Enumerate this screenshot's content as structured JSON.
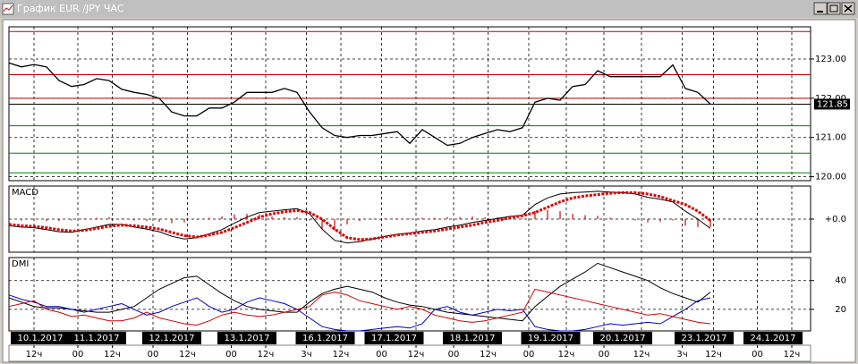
{
  "window": {
    "title": "График EUR /JPY ЧАС"
  },
  "chart_data": [
    {
      "type": "line",
      "color": "#000000",
      "xlim": [
        0,
        256
      ],
      "ylim": [
        119.9,
        123.82
      ],
      "yticks": [
        {
          "value": 120,
          "label": "120.00"
        },
        {
          "value": 121,
          "label": "121.00"
        },
        {
          "value": 122,
          "label": "122.00"
        },
        {
          "value": 123,
          "label": "123.00"
        }
      ],
      "grid": true,
      "last_price": 121.85,
      "levels": [
        {
          "value": 123.7,
          "color": "#c00000"
        },
        {
          "value": 122.6,
          "color": "#c00000"
        },
        {
          "value": 122.0,
          "color": "#c00000"
        },
        {
          "value": 121.3,
          "color": "#008000"
        },
        {
          "value": 120.6,
          "color": "#008000"
        },
        {
          "value": 120.1,
          "color": "#008000"
        }
      ],
      "x": [
        0,
        4,
        8,
        12,
        16,
        20,
        24,
        28,
        32,
        36,
        40,
        44,
        48,
        52,
        56,
        60,
        64,
        68,
        72,
        76,
        80,
        84,
        88,
        92,
        96,
        100,
        104,
        108,
        112,
        116,
        120,
        124,
        128,
        132,
        136,
        140,
        144,
        148,
        152,
        156,
        160,
        164,
        168,
        172,
        176,
        180,
        184,
        188,
        192,
        196,
        200,
        204,
        208,
        212,
        216,
        220,
        224
      ],
      "values": [
        122.9,
        122.8,
        122.86,
        122.8,
        122.45,
        122.3,
        122.35,
        122.5,
        122.45,
        122.23,
        122.15,
        122.1,
        122.0,
        121.65,
        121.55,
        121.55,
        121.75,
        121.75,
        121.9,
        122.15,
        122.15,
        122.15,
        122.25,
        122.15,
        121.65,
        121.25,
        121.05,
        121.0,
        121.05,
        121.05,
        121.1,
        121.15,
        120.85,
        121.2,
        121.0,
        120.8,
        120.85,
        121.0,
        121.1,
        121.2,
        121.15,
        121.25,
        121.9,
        122.0,
        121.95,
        122.3,
        122.35,
        122.7,
        122.55,
        122.55,
        122.55,
        122.55,
        122.55,
        122.85,
        122.25,
        122.15,
        121.85
      ]
    },
    {
      "type": "macd",
      "title": "MACD",
      "xlim": [
        0,
        256
      ],
      "ylim": [
        -0.5,
        0.5
      ],
      "yticks": [
        {
          "value": 0,
          "label": "+0.0"
        }
      ],
      "x": [
        0,
        4,
        8,
        12,
        16,
        20,
        24,
        28,
        32,
        36,
        40,
        44,
        48,
        52,
        56,
        60,
        64,
        68,
        72,
        76,
        80,
        84,
        88,
        92,
        96,
        100,
        104,
        108,
        112,
        116,
        120,
        124,
        128,
        132,
        136,
        140,
        144,
        148,
        152,
        156,
        160,
        164,
        168,
        172,
        176,
        180,
        184,
        188,
        192,
        196,
        200,
        204,
        208,
        212,
        216,
        220,
        224
      ],
      "series": [
        {
          "color": "#000000",
          "values": [
            -0.1,
            -0.12,
            -0.13,
            -0.16,
            -0.19,
            -0.2,
            -0.16,
            -0.12,
            -0.08,
            -0.08,
            -0.12,
            -0.15,
            -0.19,
            -0.26,
            -0.3,
            -0.28,
            -0.22,
            -0.16,
            -0.06,
            0.03,
            0.1,
            0.12,
            0.14,
            0.16,
            0.08,
            -0.15,
            -0.32,
            -0.36,
            -0.34,
            -0.3,
            -0.26,
            -0.23,
            -0.21,
            -0.18,
            -0.16,
            -0.12,
            -0.09,
            -0.05,
            -0.02,
            0.01,
            0.04,
            0.06,
            0.22,
            0.32,
            0.38,
            0.4,
            0.41,
            0.42,
            0.41,
            0.4,
            0.38,
            0.33,
            0.3,
            0.26,
            0.12,
            0.0,
            -0.14
          ]
        },
        {
          "color": "#e00000",
          "values": [
            -0.08,
            -0.1,
            -0.11,
            -0.13,
            -0.16,
            -0.18,
            -0.17,
            -0.14,
            -0.11,
            -0.09,
            -0.1,
            -0.12,
            -0.15,
            -0.2,
            -0.25,
            -0.27,
            -0.24,
            -0.2,
            -0.13,
            -0.05,
            0.03,
            0.08,
            0.11,
            0.13,
            0.1,
            0.0,
            -0.15,
            -0.28,
            -0.31,
            -0.3,
            -0.27,
            -0.24,
            -0.22,
            -0.2,
            -0.18,
            -0.15,
            -0.12,
            -0.09,
            -0.05,
            -0.02,
            0.02,
            0.05,
            0.1,
            0.18,
            0.26,
            0.32,
            0.35,
            0.37,
            0.39,
            0.4,
            0.4,
            0.38,
            0.34,
            0.28,
            0.22,
            0.12,
            -0.02
          ]
        }
      ],
      "histogram": {
        "color": "#e00000",
        "values": [
          -0.02,
          -0.02,
          -0.02,
          -0.03,
          -0.03,
          -0.02,
          0.01,
          0.02,
          0.03,
          0.01,
          -0.02,
          -0.03,
          -0.04,
          -0.06,
          -0.05,
          -0.01,
          0.02,
          0.04,
          0.07,
          0.08,
          0.07,
          0.04,
          0.03,
          0.03,
          -0.02,
          -0.15,
          -0.17,
          -0.08,
          -0.03,
          0,
          0.01,
          0.01,
          0.01,
          0.02,
          0.02,
          0.03,
          0.03,
          0.04,
          0.03,
          0.03,
          0.02,
          0.01,
          0.12,
          0.14,
          0.12,
          0.08,
          0.06,
          0.05,
          0.02,
          0,
          -0.02,
          -0.05,
          -0.04,
          -0.02,
          -0.1,
          -0.12,
          -0.12
        ]
      }
    },
    {
      "type": "dmi",
      "title": "DMI",
      "xlim": [
        0,
        256
      ],
      "ylim": [
        5,
        56
      ],
      "yticks": [
        20,
        40
      ],
      "x": [
        0,
        4,
        8,
        12,
        16,
        20,
        24,
        28,
        32,
        36,
        40,
        44,
        48,
        52,
        56,
        60,
        64,
        68,
        72,
        76,
        80,
        84,
        88,
        92,
        96,
        100,
        104,
        108,
        112,
        116,
        120,
        124,
        128,
        132,
        136,
        140,
        144,
        148,
        152,
        156,
        160,
        164,
        168,
        172,
        176,
        180,
        184,
        188,
        192,
        196,
        200,
        204,
        208,
        212,
        216,
        220,
        224
      ],
      "series": [
        {
          "color": "#000000",
          "values": [
            28,
            25,
            22,
            21,
            21,
            20,
            19,
            18,
            18,
            20,
            22,
            28,
            34,
            38,
            42,
            43,
            37,
            31,
            26,
            22,
            20,
            19,
            18,
            18,
            25,
            31,
            34,
            36,
            34,
            32,
            28,
            25,
            23,
            22,
            20,
            18,
            17,
            16,
            15,
            14,
            13,
            12,
            22,
            29,
            36,
            41,
            46,
            52,
            49,
            46,
            43,
            40,
            35,
            31,
            28,
            25,
            32
          ]
        },
        {
          "color": "#0000c0",
          "values": [
            30,
            27,
            25,
            22,
            22,
            20,
            18,
            20,
            22,
            24,
            20,
            16,
            18,
            22,
            25,
            28,
            22,
            18,
            20,
            25,
            28,
            26,
            24,
            20,
            14,
            8,
            6,
            5,
            5,
            6,
            7,
            8,
            7,
            10,
            20,
            22,
            18,
            16,
            18,
            20,
            19,
            20,
            8,
            6,
            5,
            5,
            6,
            8,
            10,
            9,
            10,
            11,
            10,
            15,
            20,
            26,
            28
          ]
        },
        {
          "color": "#d00000",
          "values": [
            22,
            24,
            26,
            20,
            18,
            15,
            16,
            14,
            12,
            12,
            14,
            18,
            14,
            12,
            10,
            9,
            12,
            16,
            18,
            16,
            15,
            16,
            18,
            20,
            22,
            30,
            32,
            30,
            26,
            24,
            22,
            20,
            22,
            20,
            16,
            14,
            12,
            11,
            12,
            14,
            16,
            18,
            34,
            32,
            30,
            28,
            26,
            24,
            22,
            20,
            18,
            16,
            17,
            15,
            13,
            11,
            10
          ]
        }
      ],
      "xticks": [
        {
          "value": 10,
          "label": "10.1.2017"
        },
        {
          "value": 28,
          "label": "11.1.2017"
        },
        {
          "value": 52,
          "label": "12.1.2017"
        },
        {
          "value": 76,
          "label": "13.1.2017"
        },
        {
          "value": 101,
          "label": "16.1.2017"
        },
        {
          "value": 123,
          "label": "17.1.2017"
        },
        {
          "value": 148,
          "label": "18.1.2017"
        },
        {
          "value": 173,
          "label": "19.1.2017"
        },
        {
          "value": 196,
          "label": "20.1.2017"
        },
        {
          "value": 222,
          "label": "23.1.2017"
        },
        {
          "value": 244,
          "label": "24.1.2017"
        }
      ],
      "xticks_minor": [
        {
          "value": 8,
          "label": "12ч"
        },
        {
          "value": 22,
          "label": "00"
        },
        {
          "value": 33,
          "label": "12ч"
        },
        {
          "value": 46,
          "label": "00"
        },
        {
          "value": 57,
          "label": "12ч"
        },
        {
          "value": 71,
          "label": "00"
        },
        {
          "value": 82,
          "label": "12ч"
        },
        {
          "value": 95,
          "label": "3ч"
        },
        {
          "value": 106,
          "label": "12ч"
        },
        {
          "value": 119,
          "label": "00"
        },
        {
          "value": 130,
          "label": "12ч"
        },
        {
          "value": 142,
          "label": "00"
        },
        {
          "value": 153,
          "label": "12ч"
        },
        {
          "value": 166,
          "label": "00"
        },
        {
          "value": 178,
          "label": "12ч"
        },
        {
          "value": 190,
          "label": "00"
        },
        {
          "value": 202,
          "label": "12ч"
        },
        {
          "value": 215,
          "label": "3ч"
        },
        {
          "value": 225,
          "label": "12ч"
        },
        {
          "value": 239,
          "label": "00"
        },
        {
          "value": 250,
          "label": "12ч"
        }
      ]
    }
  ]
}
